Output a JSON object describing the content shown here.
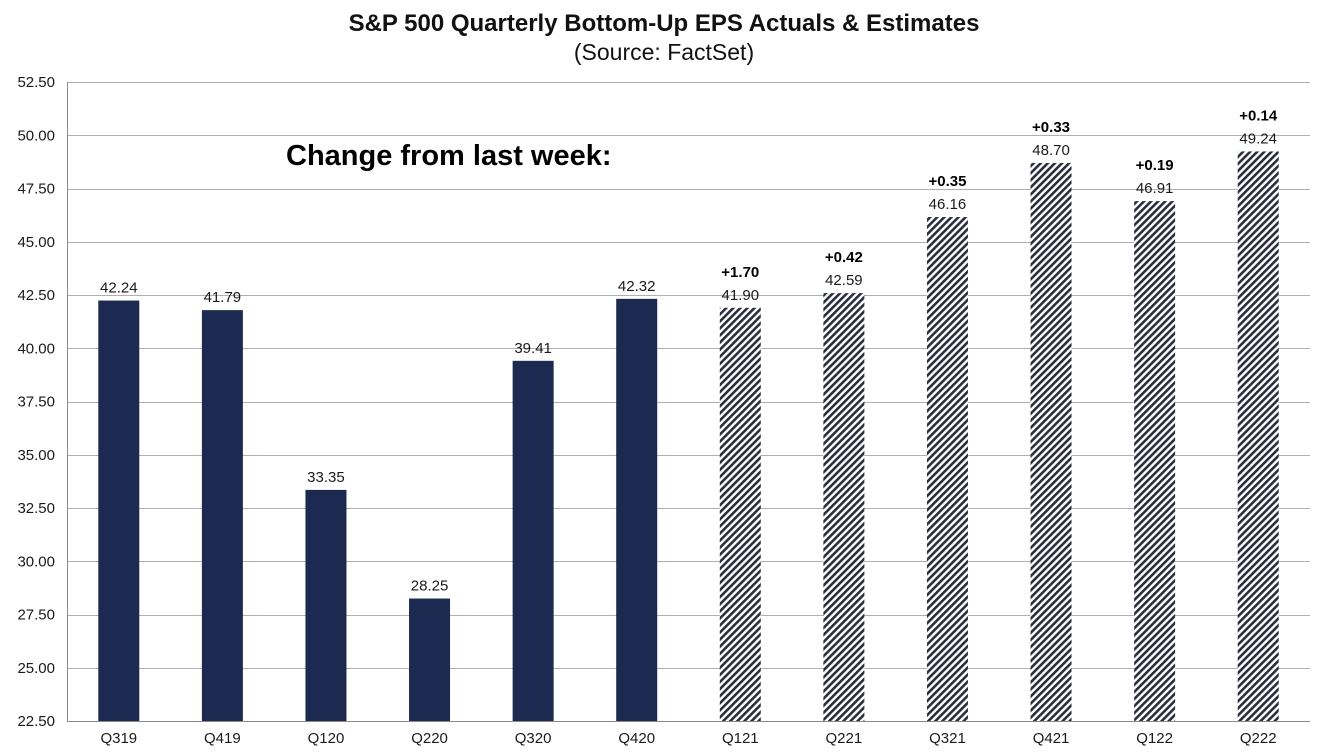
{
  "chart_data": {
    "type": "bar",
    "title": "S&P 500 Quarterly Bottom-Up EPS Actuals & Estimates",
    "subtitle": "(Source: FactSet)",
    "xlabel": "",
    "ylabel": "",
    "ylim": [
      22.5,
      52.5
    ],
    "yticks": [
      "22.50",
      "25.00",
      "27.50",
      "30.00",
      "32.50",
      "35.00",
      "37.50",
      "40.00",
      "42.50",
      "45.00",
      "47.50",
      "50.00",
      "52.50"
    ],
    "ytick_values": [
      22.5,
      25,
      27.5,
      30,
      32.5,
      35,
      37.5,
      40,
      42.5,
      45,
      47.5,
      50,
      52.5
    ],
    "grid": true,
    "annotation": "Change from last week:",
    "categories": [
      "Q319",
      "Q419",
      "Q120",
      "Q220",
      "Q320",
      "Q420",
      "Q121",
      "Q221",
      "Q321",
      "Q421",
      "Q122",
      "Q222"
    ],
    "values": [
      42.24,
      41.79,
      33.35,
      28.25,
      39.41,
      42.32,
      41.9,
      42.59,
      46.16,
      48.7,
      46.91,
      49.24
    ],
    "value_labels": [
      "42.24",
      "41.79",
      "33.35",
      "28.25",
      "39.41",
      "42.32",
      "41.90",
      "42.59",
      "46.16",
      "48.70",
      "46.91",
      "49.24"
    ],
    "kind": [
      "actual",
      "actual",
      "actual",
      "actual",
      "actual",
      "actual",
      "estimate",
      "estimate",
      "estimate",
      "estimate",
      "estimate",
      "estimate"
    ],
    "change_labels": [
      "",
      "",
      "",
      "",
      "",
      "",
      "+1.70",
      "+0.42",
      "+0.35",
      "+0.33",
      "+0.19",
      "+0.14"
    ],
    "colors": {
      "actual": "#1c2951",
      "estimate_stripe": "#2b2e3f",
      "estimate_bg": "#ffffff"
    }
  }
}
